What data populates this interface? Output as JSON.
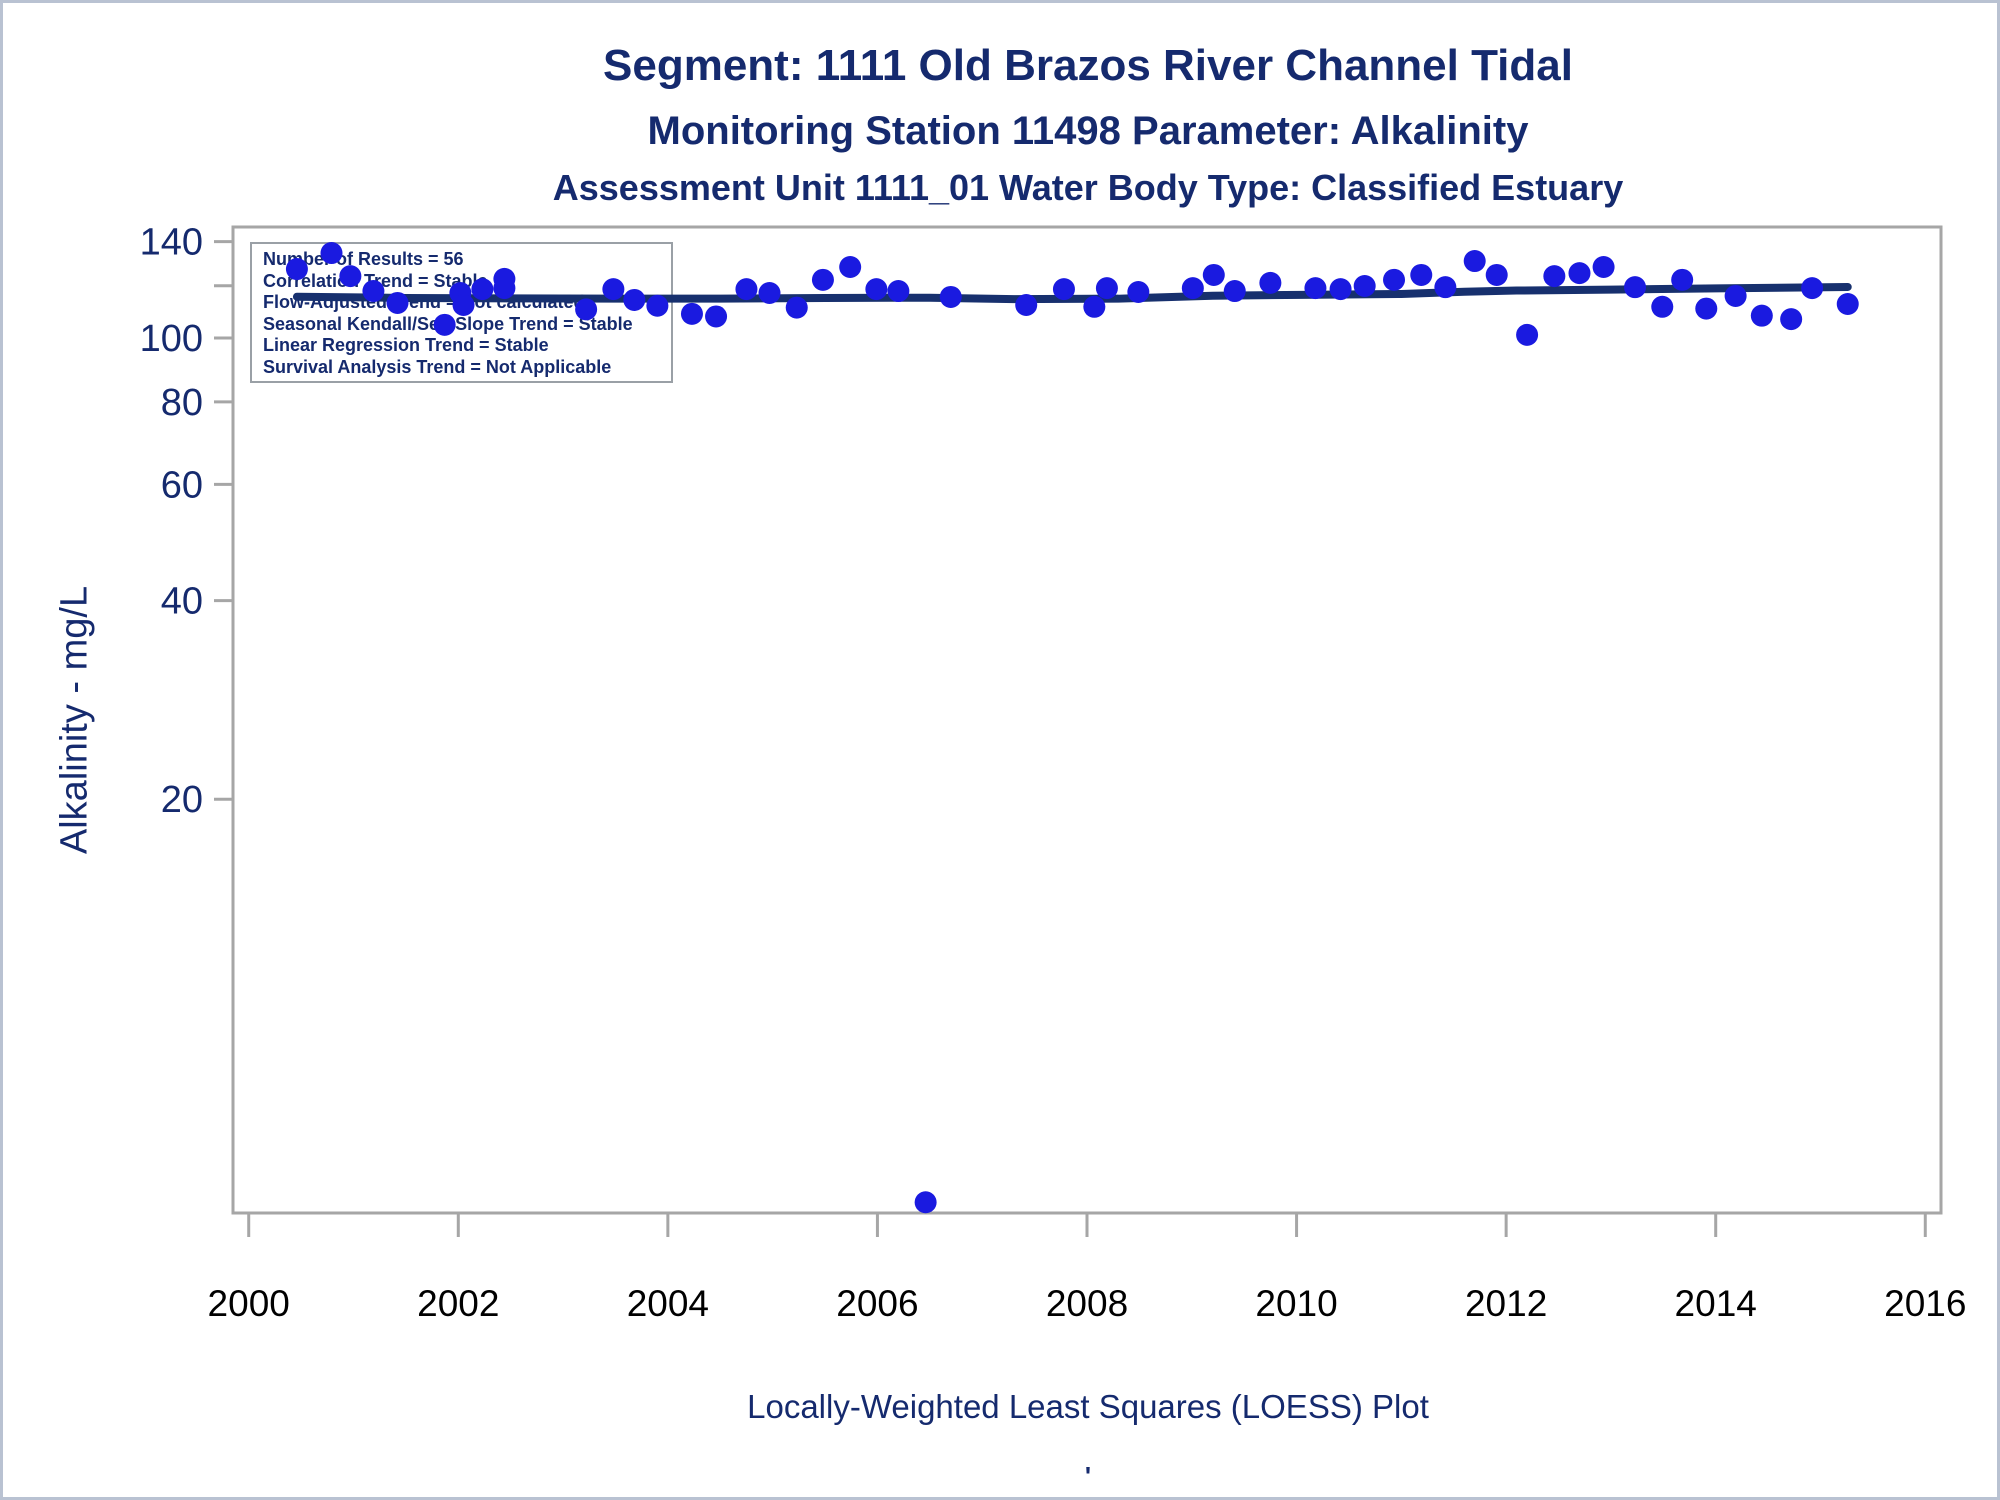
{
  "window": {
    "background": "#ffffff",
    "border_color": "#b9c2d2"
  },
  "header": {
    "title": "Segment: 1111  Old Brazos River Channel Tidal",
    "subtitle": "Monitoring Station 11498 Parameter: Alkalinity",
    "assessment_line": "Assessment Unit 1111_01   Water Body Type: Classified Estuary"
  },
  "stats_box": {
    "lines": [
      "Number of Results = 56",
      "Correlation Trend = Stable",
      "Flow-Adjusted Trend = Not calculated",
      "Seasonal Kendall/Sen Slope Trend = Stable",
      "Linear Regression Trend = Stable",
      "Survival Analysis Trend = Not Applicable"
    ]
  },
  "footer": {
    "caption": "Locally-Weighted Least Squares (LOESS) Plot",
    "mark": "'"
  },
  "chart_data": {
    "type": "scatter",
    "title": "Segment: 1111  Old Brazos River Channel Tidal",
    "subtitle": "Monitoring Station 11498 Parameter: Alkalinity",
    "assessment_line": "Assessment Unit 1111_01   Water Body Type: Classified Estuary",
    "footnote": "Locally-Weighted Least Squares (LOESS) Plot",
    "xlabel": "",
    "ylabel": "Alkalinity - mg/L",
    "y_scale": "log",
    "grid": false,
    "legend_position": "none",
    "x_range": [
      1999.85,
      2016.15
    ],
    "y_range": [
      4.72,
      147.3
    ],
    "x_ticks": [
      2000,
      2002,
      2004,
      2006,
      2008,
      2010,
      2012,
      2014,
      2016
    ],
    "y_ticks": [
      {
        "value": 140,
        "label": "140"
      },
      {
        "value": 120,
        "label": ""
      },
      {
        "value": 100,
        "label": "100"
      },
      {
        "value": 80,
        "label": "80"
      },
      {
        "value": 60,
        "label": "60"
      },
      {
        "value": 40,
        "label": "40"
      },
      {
        "value": 20,
        "label": "20"
      }
    ],
    "number_of_results": 56,
    "series": [
      {
        "name": "Alkalinity results",
        "type": "scatter",
        "points": [
          [
            2000.46,
            127.2
          ],
          [
            2000.79,
            134.5
          ],
          [
            2000.97,
            124.1
          ],
          [
            2001.19,
            117.8
          ],
          [
            2001.42,
            113.0
          ],
          [
            2001.87,
            104.7
          ],
          [
            2002.02,
            117.0
          ],
          [
            2002.05,
            112.2
          ],
          [
            2002.23,
            118.6
          ],
          [
            2002.44,
            122.9
          ],
          [
            2002.44,
            119.0
          ],
          [
            2003.22,
            110.5
          ],
          [
            2003.48,
            118.6
          ],
          [
            2003.68,
            114.2
          ],
          [
            2003.9,
            111.9
          ],
          [
            2004.23,
            108.8
          ],
          [
            2004.46,
            107.8
          ],
          [
            2004.75,
            118.6
          ],
          [
            2004.97,
            117.0
          ],
          [
            2005.23,
            111.2
          ],
          [
            2005.48,
            122.5
          ],
          [
            2005.74,
            128.1
          ],
          [
            2005.99,
            118.6
          ],
          [
            2006.2,
            117.8
          ],
          [
            2006.46,
            4.9
          ],
          [
            2006.7,
            115.4
          ],
          [
            2007.42,
            112.2
          ],
          [
            2007.78,
            118.6
          ],
          [
            2008.07,
            111.5
          ],
          [
            2008.19,
            119.0
          ],
          [
            2008.49,
            117.4
          ],
          [
            2009.01,
            119.0
          ],
          [
            2009.21,
            124.6
          ],
          [
            2009.41,
            117.8
          ],
          [
            2009.75,
            121.2
          ],
          [
            2010.18,
            119.0
          ],
          [
            2010.42,
            118.6
          ],
          [
            2010.65,
            119.9
          ],
          [
            2010.93,
            122.5
          ],
          [
            2011.19,
            124.6
          ],
          [
            2011.42,
            119.4
          ],
          [
            2011.7,
            130.8
          ],
          [
            2011.91,
            124.6
          ],
          [
            2012.2,
            101.1
          ],
          [
            2012.46,
            124.1
          ],
          [
            2012.7,
            125.4
          ],
          [
            2012.93,
            128.1
          ],
          [
            2013.23,
            119.4
          ],
          [
            2013.49,
            111.5
          ],
          [
            2013.68,
            122.5
          ],
          [
            2013.91,
            110.8
          ],
          [
            2014.19,
            115.8
          ],
          [
            2014.44,
            108.1
          ],
          [
            2014.72,
            106.8
          ],
          [
            2014.92,
            119.0
          ],
          [
            2015.26,
            112.6
          ]
        ]
      },
      {
        "name": "LOESS trend",
        "type": "line",
        "points": [
          [
            2000.46,
            115.5
          ],
          [
            2001.5,
            115.0
          ],
          [
            2002.5,
            114.8
          ],
          [
            2003.5,
            114.7
          ],
          [
            2004.5,
            114.7
          ],
          [
            2005.5,
            115.0
          ],
          [
            2006.5,
            115.1
          ],
          [
            2007.3,
            114.5
          ],
          [
            2008.3,
            114.7
          ],
          [
            2009.2,
            115.9
          ],
          [
            2010.2,
            116.3
          ],
          [
            2011.0,
            116.6
          ],
          [
            2011.6,
            117.5
          ],
          [
            2012.1,
            118.0
          ],
          [
            2013.0,
            118.4
          ],
          [
            2014.0,
            118.9
          ],
          [
            2015.26,
            119.5
          ]
        ]
      }
    ],
    "colors": {
      "point": "#1A1AE0",
      "trend": "#17306E",
      "navy": "#152A6E",
      "axis": "#A6A6A6",
      "x_tick_label": "#000000"
    }
  }
}
